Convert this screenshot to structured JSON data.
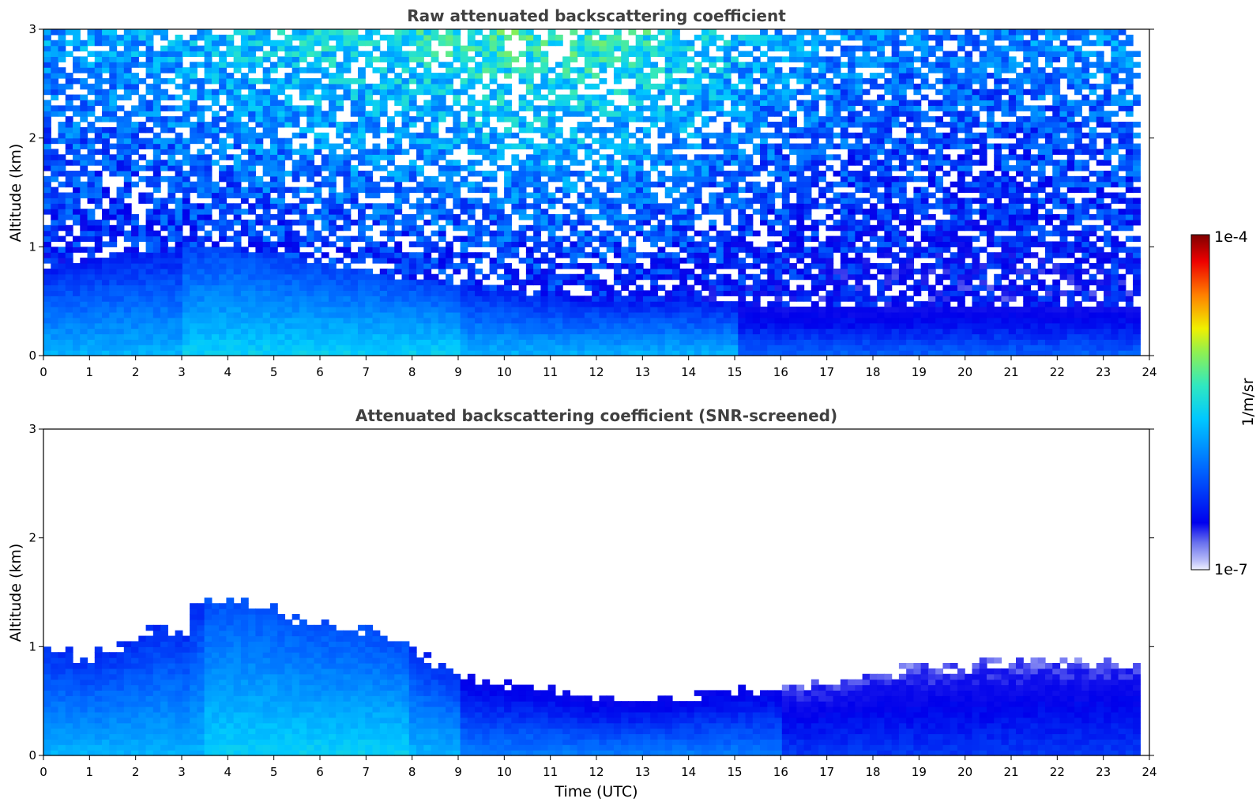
{
  "chart_data": [
    {
      "type": "heatmap",
      "title": "Raw attenuated backscattering coefficient",
      "xlabel": "",
      "ylabel": "Altitude (km)",
      "xlim": [
        0,
        24
      ],
      "ylim": [
        0,
        3
      ],
      "x_ticks": [
        "0",
        "1",
        "2",
        "3",
        "4",
        "5",
        "6",
        "7",
        "8",
        "9",
        "10",
        "11",
        "12",
        "13",
        "14",
        "15",
        "16",
        "17",
        "18",
        "19",
        "20",
        "21",
        "22",
        "23",
        "24"
      ],
      "y_ticks": [
        "0",
        "1",
        "2",
        "3"
      ],
      "data_time_end": 23.8,
      "description_series": {
        "time_hours": [
          0,
          2,
          4,
          6,
          8,
          10,
          12,
          14,
          16,
          18,
          20,
          22,
          23.8
        ],
        "boundary_layer_top_km": [
          0.8,
          0.95,
          1.0,
          0.85,
          0.7,
          0.6,
          0.5,
          0.5,
          0.45,
          0.45,
          0.45,
          0.45,
          0.45
        ],
        "high_altitude_noise_level": [
          0.3,
          0.35,
          0.45,
          0.55,
          0.6,
          0.7,
          0.7,
          0.55,
          0.35,
          0.25,
          0.2,
          0.25,
          0.3
        ]
      }
    },
    {
      "type": "heatmap",
      "title": "Attenuated backscattering coefficient (SNR-screened)",
      "xlabel": "Time (UTC)",
      "ylabel": "Altitude (km)",
      "xlim": [
        0,
        24
      ],
      "ylim": [
        0,
        3
      ],
      "x_ticks": [
        "0",
        "1",
        "2",
        "3",
        "4",
        "5",
        "6",
        "7",
        "8",
        "9",
        "10",
        "11",
        "12",
        "13",
        "14",
        "15",
        "16",
        "17",
        "18",
        "19",
        "20",
        "21",
        "22",
        "23",
        "24"
      ],
      "y_ticks": [
        "0",
        "1",
        "2",
        "3"
      ],
      "data_time_end": 23.8,
      "signal_top_km": {
        "time_hours": [
          0,
          1,
          2,
          2.6,
          3.1,
          3.3,
          4,
          5,
          6,
          7,
          8,
          8.5,
          9,
          10,
          11,
          12,
          12.5,
          13,
          14,
          15,
          16,
          17,
          18,
          19,
          20,
          21,
          22,
          23,
          23.8
        ],
        "values": [
          1.0,
          0.9,
          1.05,
          1.2,
          1.1,
          1.4,
          1.45,
          1.35,
          1.2,
          1.15,
          1.0,
          0.85,
          0.75,
          0.65,
          0.6,
          0.5,
          0.5,
          0.5,
          0.55,
          0.6,
          0.62,
          0.68,
          0.75,
          0.8,
          0.82,
          0.85,
          0.85,
          0.85,
          0.85
        ]
      }
    }
  ],
  "colorbar": {
    "top_label": "1e-4",
    "bottom_label": "1e-7",
    "unit_label": "1/m/sr",
    "colormap": "jet",
    "scale": "log",
    "range": [
      1e-07,
      0.0001
    ]
  }
}
